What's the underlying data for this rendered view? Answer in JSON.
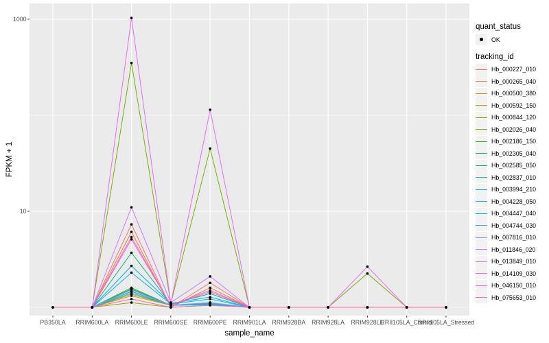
{
  "figure": {
    "bg": "#ffffff",
    "panel_bg": "#EBEBEB",
    "grid_color": "#FFFFFF",
    "tick_color": "#333333",
    "tick_label_color": "#4D4D4D",
    "point_color": "#000000"
  },
  "axes": {
    "x_title": "sample_name",
    "y_title": "FPKM + 1"
  },
  "legend": {
    "quant_status_title": "quant_status",
    "ok_label": "OK",
    "tracking_title": "tracking_id",
    "key_fill": "#F2F2F2"
  },
  "chart_data": {
    "type": "line",
    "title": "",
    "xlabel": "sample_name",
    "ylabel": "FPKM + 1",
    "y_scale": "log10",
    "ylim": [
      1,
      1030
    ],
    "grid": true,
    "legend_position": "right",
    "quant_status": "OK",
    "y_major_ticks": [
      {
        "label": "1000",
        "value": 1000
      },
      {
        "label": "10",
        "value": 10
      }
    ],
    "y_minor_ticks": [
      100,
      1
    ],
    "categories": [
      "PB350LA",
      "RRIM600LA",
      "RRIM600LE",
      "RRIM600SE",
      "RRIM600PE",
      "RRIM901LA",
      "RRIM928BA",
      "RRIM928LA",
      "RRIM928LE",
      "RRII105LA_Control",
      "RRII105LA_Stressed"
    ],
    "series": [
      {
        "name": "Hb_000227_010",
        "color": "#F8766D",
        "values": [
          1,
          1,
          7.3,
          1,
          1.8,
          1,
          1,
          1,
          1,
          1,
          1
        ]
      },
      {
        "name": "Hb_000265_040",
        "color": "#EA8331",
        "values": [
          1,
          1,
          6.1,
          1,
          1.6,
          1,
          1,
          1,
          1,
          1,
          1
        ]
      },
      {
        "name": "Hb_000500_380",
        "color": "#D89000",
        "values": [
          1,
          1,
          1.37,
          1.05,
          1.1,
          1,
          1,
          1,
          1,
          1,
          1
        ]
      },
      {
        "name": "Hb_000592_150",
        "color": "#C09B00",
        "values": [
          1,
          1,
          1.32,
          1.05,
          1.08,
          1,
          1,
          1,
          1,
          1,
          1
        ]
      },
      {
        "name": "Hb_000844_120",
        "color": "#A3A500",
        "values": [
          1,
          1,
          1.12,
          1,
          1.05,
          1,
          1,
          1,
          1,
          1,
          1
        ]
      },
      {
        "name": "Hb_002026_040",
        "color": "#7CAE00",
        "values": [
          1,
          1,
          350,
          1.1,
          45,
          1,
          1,
          1,
          2.25,
          1,
          1
        ]
      },
      {
        "name": "Hb_002186_150",
        "color": "#39B600",
        "values": [
          1,
          1,
          1.6,
          1.05,
          1.12,
          1,
          1,
          1,
          1,
          1,
          1
        ]
      },
      {
        "name": "Hb_002305_040",
        "color": "#00BB4E",
        "values": [
          1,
          1,
          1.56,
          1.05,
          1.1,
          1,
          1,
          1,
          1,
          1,
          1
        ]
      },
      {
        "name": "Hb_002585_050",
        "color": "#00BF7D",
        "values": [
          1,
          1,
          3.7,
          1.08,
          1.39,
          1,
          1,
          1,
          1,
          1,
          1
        ]
      },
      {
        "name": "Hb_002837_010",
        "color": "#00C1A3",
        "values": [
          1,
          1,
          1.46,
          1.05,
          1.08,
          1,
          1,
          1,
          1,
          1,
          1
        ]
      },
      {
        "name": "Hb_003994_210",
        "color": "#00BFC4",
        "values": [
          1,
          1,
          1.41,
          1.05,
          1.06,
          1,
          1,
          1,
          1,
          1,
          1
        ]
      },
      {
        "name": "Hb_004228_050",
        "color": "#00BAE0",
        "values": [
          1,
          1,
          2.3,
          1.08,
          1.22,
          1,
          1,
          1,
          1,
          1,
          1
        ]
      },
      {
        "name": "Hb_004447_040",
        "color": "#00B0F6",
        "values": [
          1,
          1,
          2.7,
          1.1,
          1.28,
          1,
          1,
          1,
          1,
          1,
          1
        ]
      },
      {
        "name": "Hb_004744_030",
        "color": "#35A2FF",
        "values": [
          1,
          1,
          1.53,
          1.05,
          1.1,
          1,
          1,
          1,
          1,
          1,
          1
        ]
      },
      {
        "name": "Hb_007816_010",
        "color": "#9590FF",
        "values": [
          1,
          1,
          1.48,
          1.05,
          1.12,
          1,
          1,
          1,
          1,
          1,
          1
        ]
      },
      {
        "name": "Hb_011846_020",
        "color": "#C77CFF",
        "values": [
          1,
          1,
          11,
          1.12,
          2.1,
          1,
          1,
          1,
          1,
          1,
          1
        ]
      },
      {
        "name": "Hb_013849_010",
        "color": "#E76BF3",
        "values": [
          1,
          1,
          1030,
          1.1,
          114,
          1,
          1,
          1,
          2.65,
          1,
          1
        ]
      },
      {
        "name": "Hb_014109_030",
        "color": "#FA62DB",
        "values": [
          1,
          1,
          5.4,
          1.05,
          1.5,
          1,
          1,
          1,
          1,
          1,
          1
        ]
      },
      {
        "name": "Hb_046150_010",
        "color": "#FF61C9",
        "values": [
          1,
          1,
          5.1,
          1.05,
          1.45,
          1,
          1,
          1,
          1,
          1,
          1
        ]
      },
      {
        "name": "Hb_075653_010",
        "color": "#FF65B0",
        "values": [
          1,
          1,
          1.22,
          1,
          1.05,
          1,
          1,
          1,
          1,
          1,
          1
        ]
      }
    ]
  }
}
